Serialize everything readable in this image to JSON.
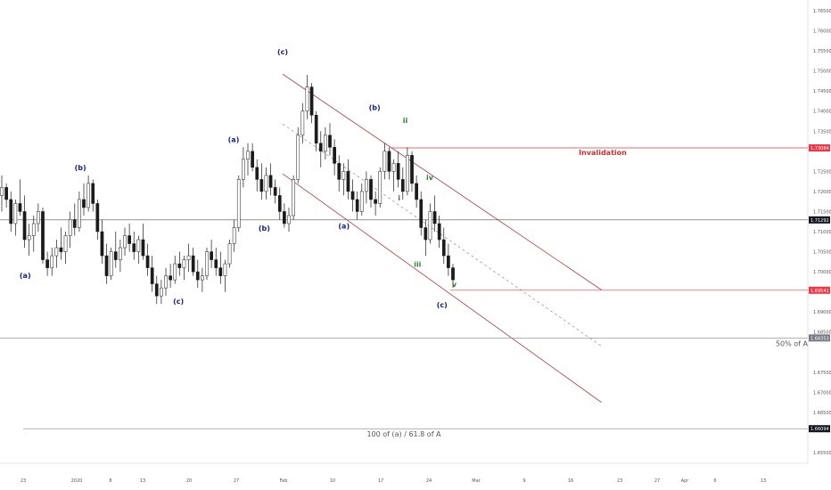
{
  "chart_data": {
    "type": "candlestick",
    "title": "",
    "xlabel": "",
    "ylabel": "",
    "ylim": [
      1.652,
      1.77
    ],
    "grid": false,
    "y_ticks": [
      "1.76500",
      "1.76000",
      "1.75500",
      "1.75000",
      "1.74500",
      "1.74000",
      "1.73500",
      "1.72500",
      "1.72000",
      "1.71500",
      "1.71000",
      "1.70500",
      "1.70000",
      "1.69000",
      "1.68500",
      "1.67500",
      "1.67000",
      "1.66500",
      "1.65500"
    ],
    "x_ticks": [
      "23",
      "2020",
      "8",
      "13",
      "20",
      "27",
      "Feb",
      "10",
      "17",
      "24",
      "Mar",
      "9",
      "16",
      "23",
      "27",
      "Apr",
      "6",
      "13"
    ],
    "price_tags": [
      {
        "value": 1.73084,
        "label": "1.73084",
        "color": "#f23645",
        "text_color": "#ffffff"
      },
      {
        "value": 1.71292,
        "label": "1.71292",
        "color": "#131722",
        "text_color": "#ffffff"
      },
      {
        "value": 1.69541,
        "label": "1.69541",
        "color": "#f23645",
        "text_color": "#ffffff"
      },
      {
        "value": 1.68353,
        "label": "1.68353",
        "color": "#787b86",
        "text_color": "#ffffff"
      },
      {
        "value": 1.66094,
        "label": "1.66094",
        "color": "#131722",
        "text_color": "#ffffff"
      }
    ],
    "horizontal_levels": [
      {
        "value": 1.73084,
        "color": "#f23645",
        "annotation": "Invalidation"
      },
      {
        "value": 1.71292,
        "color": "#555555",
        "annotation": ""
      },
      {
        "value": 1.69541,
        "color": "#f23645",
        "annotation": ""
      },
      {
        "value": 1.68353,
        "color": "#9598a1",
        "annotation": "50% of A"
      },
      {
        "value": 1.66094,
        "color": "#9598a1",
        "annotation": "100 of (a) / 61.8 of A"
      }
    ],
    "wave_labels": [
      {
        "text": "(a)",
        "x": "Dec 20",
        "y": 1.6985,
        "color": "#1a237e"
      },
      {
        "text": "(b)",
        "x": "Dec 29",
        "y": 1.7253,
        "color": "#1a237e"
      },
      {
        "text": "(c)",
        "x": "Jan 14",
        "y": 1.692,
        "color": "#1a237e"
      },
      {
        "text": "(a)",
        "x": "Jan 23",
        "y": 1.7323,
        "color": "#1a237e"
      },
      {
        "text": "(b)",
        "x": "Jan 28",
        "y": 1.7102,
        "color": "#1a237e"
      },
      {
        "text": "(c)",
        "x": "Jan 31",
        "y": 1.7541,
        "color": "#1a237e"
      },
      {
        "text": "(a)",
        "x": "Feb 10",
        "y": 1.7108,
        "color": "#1a237e"
      },
      {
        "text": "(b)",
        "x": "Feb 15",
        "y": 1.7403,
        "color": "#1a237e"
      },
      {
        "text": "ii",
        "x": "Feb 20",
        "y": 1.7371,
        "color": "#2e7d32"
      },
      {
        "text": "i",
        "x": "Feb 19",
        "y": 1.7178,
        "color": "#2e7d32"
      },
      {
        "text": "iii",
        "x": "Feb 22",
        "y": 1.7012,
        "color": "#2e7d32"
      },
      {
        "text": "iv",
        "x": "Feb 24",
        "y": 1.7229,
        "color": "#2e7d32"
      },
      {
        "text": "v",
        "x": "Feb 28",
        "y": 1.6962,
        "color": "#2e7d32"
      },
      {
        "text": "(c)",
        "x": "Feb 26",
        "y": 1.6912,
        "color": "#1a237e"
      }
    ],
    "channel": {
      "upper": [
        [
          "Jan 31",
          1.7492
        ],
        [
          "Mar 23",
          1.6955
        ]
      ],
      "lower": [
        [
          "Jan 31",
          1.7244
        ],
        [
          "Mar 23",
          1.6675
        ]
      ],
      "mid": [
        [
          "Jan 31",
          1.7368
        ],
        [
          "Mar 23",
          1.6815
        ]
      ],
      "color": "#b03a48"
    },
    "candles": [
      [
        1.719,
        1.724,
        1.715,
        1.721
      ],
      [
        1.721,
        1.722,
        1.716,
        1.718
      ],
      [
        1.718,
        1.72,
        1.71,
        1.712
      ],
      [
        1.712,
        1.718,
        1.709,
        1.717
      ],
      [
        1.717,
        1.723,
        1.714,
        1.715
      ],
      [
        1.715,
        1.719,
        1.706,
        1.708
      ],
      [
        1.708,
        1.712,
        1.704,
        1.709
      ],
      [
        1.709,
        1.714,
        1.705,
        1.712
      ],
      [
        1.712,
        1.717,
        1.71,
        1.715
      ],
      [
        1.715,
        1.716,
        1.702,
        1.703
      ],
      [
        1.703,
        1.705,
        1.699,
        1.701
      ],
      [
        1.701,
        1.706,
        1.699,
        1.704
      ],
      [
        1.704,
        1.708,
        1.701,
        1.706
      ],
      [
        1.706,
        1.711,
        1.703,
        1.705
      ],
      [
        1.705,
        1.71,
        1.702,
        1.709
      ],
      [
        1.709,
        1.715,
        1.706,
        1.713
      ],
      [
        1.713,
        1.717,
        1.709,
        1.711
      ],
      [
        1.711,
        1.72,
        1.71,
        1.718
      ],
      [
        1.718,
        1.722,
        1.714,
        1.716
      ],
      [
        1.716,
        1.724,
        1.715,
        1.722
      ],
      [
        1.722,
        1.723,
        1.715,
        1.717
      ],
      [
        1.717,
        1.718,
        1.708,
        1.71
      ],
      [
        1.71,
        1.713,
        1.702,
        1.704
      ],
      [
        1.704,
        1.707,
        1.697,
        1.699
      ],
      [
        1.699,
        1.706,
        1.698,
        1.705
      ],
      [
        1.705,
        1.71,
        1.701,
        1.703
      ],
      [
        1.703,
        1.708,
        1.7,
        1.706
      ],
      [
        1.706,
        1.711,
        1.704,
        1.709
      ],
      [
        1.709,
        1.712,
        1.705,
        1.707
      ],
      [
        1.707,
        1.71,
        1.703,
        1.705
      ],
      [
        1.705,
        1.709,
        1.702,
        1.708
      ],
      [
        1.708,
        1.712,
        1.703,
        1.704
      ],
      [
        1.704,
        1.707,
        1.699,
        1.701
      ],
      [
        1.701,
        1.704,
        1.695,
        1.697
      ],
      [
        1.697,
        1.699,
        1.692,
        1.694
      ],
      [
        1.694,
        1.698,
        1.692,
        1.696
      ],
      [
        1.696,
        1.701,
        1.694,
        1.699
      ],
      [
        1.699,
        1.702,
        1.696,
        1.698
      ],
      [
        1.698,
        1.704,
        1.697,
        1.702
      ],
      [
        1.702,
        1.705,
        1.699,
        1.701
      ],
      [
        1.701,
        1.704,
        1.698,
        1.703
      ],
      [
        1.703,
        1.707,
        1.7,
        1.704
      ],
      [
        1.704,
        1.706,
        1.699,
        1.7
      ],
      [
        1.7,
        1.703,
        1.696,
        1.698
      ],
      [
        1.698,
        1.701,
        1.695,
        1.699
      ],
      [
        1.699,
        1.706,
        1.698,
        1.705
      ],
      [
        1.705,
        1.708,
        1.701,
        1.703
      ],
      [
        1.703,
        1.706,
        1.699,
        1.701
      ],
      [
        1.701,
        1.705,
        1.697,
        1.699
      ],
      [
        1.699,
        1.703,
        1.695,
        1.702
      ],
      [
        1.702,
        1.708,
        1.701,
        1.707
      ],
      [
        1.707,
        1.713,
        1.705,
        1.711
      ],
      [
        1.711,
        1.724,
        1.71,
        1.723
      ],
      [
        1.723,
        1.731,
        1.721,
        1.728
      ],
      [
        1.728,
        1.732,
        1.724,
        1.73
      ],
      [
        1.73,
        1.732,
        1.725,
        1.726
      ],
      [
        1.726,
        1.728,
        1.72,
        1.723
      ],
      [
        1.723,
        1.727,
        1.718,
        1.72
      ],
      [
        1.72,
        1.726,
        1.718,
        1.724
      ],
      [
        1.724,
        1.727,
        1.719,
        1.721
      ],
      [
        1.721,
        1.723,
        1.717,
        1.719
      ],
      [
        1.719,
        1.721,
        1.713,
        1.715
      ],
      [
        1.715,
        1.717,
        1.711,
        1.712
      ],
      [
        1.712,
        1.716,
        1.71,
        1.714
      ],
      [
        1.714,
        1.724,
        1.713,
        1.723
      ],
      [
        1.723,
        1.736,
        1.722,
        1.734
      ],
      [
        1.734,
        1.742,
        1.732,
        1.74
      ],
      [
        1.74,
        1.749,
        1.738,
        1.746
      ],
      [
        1.746,
        1.747,
        1.737,
        1.739
      ],
      [
        1.739,
        1.74,
        1.73,
        1.732
      ],
      [
        1.732,
        1.735,
        1.726,
        1.73
      ],
      [
        1.73,
        1.736,
        1.728,
        1.734
      ],
      [
        1.734,
        1.737,
        1.729,
        1.731
      ],
      [
        1.731,
        1.733,
        1.724,
        1.727
      ],
      [
        1.727,
        1.729,
        1.72,
        1.723
      ],
      [
        1.723,
        1.727,
        1.719,
        1.725
      ],
      [
        1.725,
        1.728,
        1.718,
        1.72
      ],
      [
        1.72,
        1.723,
        1.715,
        1.718
      ],
      [
        1.718,
        1.72,
        1.713,
        1.715
      ],
      [
        1.715,
        1.722,
        1.714,
        1.72
      ],
      [
        1.72,
        1.725,
        1.717,
        1.723
      ],
      [
        1.723,
        1.724,
        1.716,
        1.718
      ],
      [
        1.718,
        1.72,
        1.714,
        1.717
      ],
      [
        1.717,
        1.726,
        1.716,
        1.725
      ],
      [
        1.725,
        1.732,
        1.723,
        1.73
      ],
      [
        1.73,
        1.731,
        1.723,
        1.725
      ],
      [
        1.725,
        1.728,
        1.72,
        1.727
      ],
      [
        1.727,
        1.73,
        1.721,
        1.723
      ],
      [
        1.723,
        1.726,
        1.718,
        1.72
      ],
      [
        1.72,
        1.731,
        1.719,
        1.729
      ],
      [
        1.729,
        1.73,
        1.72,
        1.722
      ],
      [
        1.722,
        1.724,
        1.716,
        1.718
      ],
      [
        1.718,
        1.72,
        1.709,
        1.711
      ],
      [
        1.711,
        1.713,
        1.704,
        1.708
      ],
      [
        1.708,
        1.717,
        1.707,
        1.715
      ],
      [
        1.715,
        1.719,
        1.71,
        1.712
      ],
      [
        1.712,
        1.714,
        1.706,
        1.708
      ],
      [
        1.708,
        1.711,
        1.702,
        1.704
      ],
      [
        1.704,
        1.707,
        1.699,
        1.701
      ],
      [
        1.701,
        1.702,
        1.696,
        1.698
      ]
    ]
  }
}
